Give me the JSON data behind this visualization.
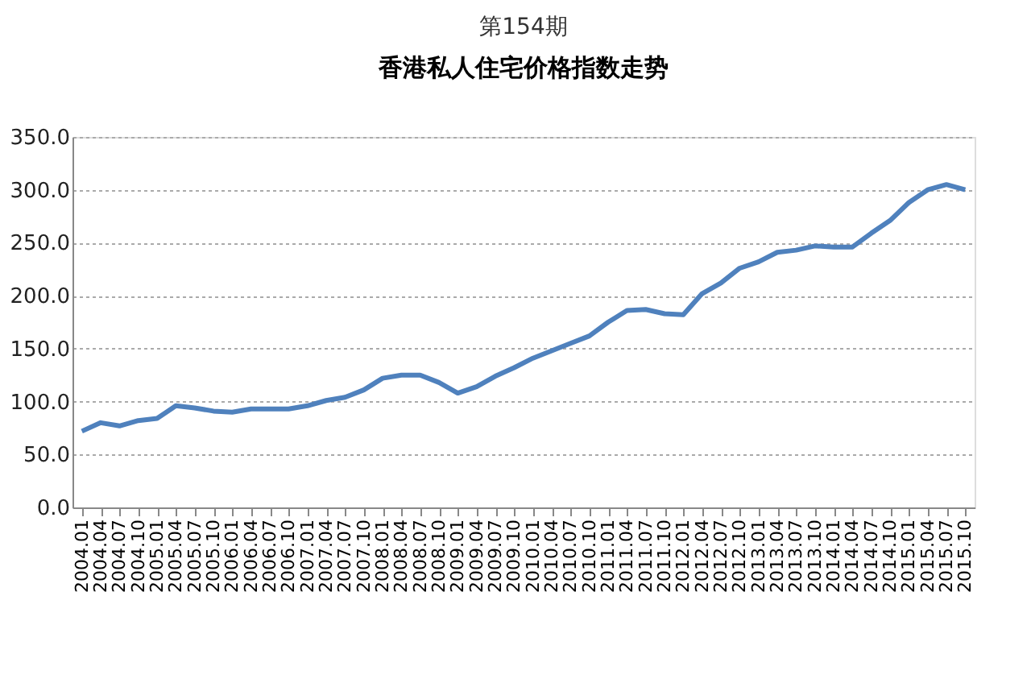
{
  "chart_data": {
    "type": "line",
    "title": "香港私人住宅价格指数走势",
    "annotations": [
      "第154期"
    ],
    "categories": [
      "2004.01",
      "2004.04",
      "2004.07",
      "2004.10",
      "2005.01",
      "2005.04",
      "2005.07",
      "2005.10",
      "2006.01",
      "2006.04",
      "2006.07",
      "2006.10",
      "2007.01",
      "2007.04",
      "2007.07",
      "2007.10",
      "2008.01",
      "2008.04",
      "2008.07",
      "2008.10",
      "2009.01",
      "2009.04",
      "2009.07",
      "2009.10",
      "2010.01",
      "2010.04",
      "2010.07",
      "2010.10",
      "2011.01",
      "2011.04",
      "2011.07",
      "2011.10",
      "2012.01",
      "2012.04",
      "2012.07",
      "2012.10",
      "2013.01",
      "2013.04",
      "2013.07",
      "2013.10",
      "2014.01",
      "2014.04",
      "2014.07",
      "2014.10",
      "2015.01",
      "2015.04",
      "2015.07",
      "2015.10"
    ],
    "series": [
      {
        "color": "#4f81bd",
        "values": [
          72,
          80,
          77,
          82,
          84,
          96,
          94,
          91,
          90,
          93,
          93,
          93,
          96,
          101,
          104,
          111,
          122,
          125,
          125,
          118,
          108,
          114,
          124,
          132,
          141,
          148,
          155,
          162,
          175,
          186,
          187,
          183,
          182,
          202,
          212,
          226,
          232,
          241,
          243,
          247,
          246,
          246,
          259,
          271,
          288,
          300,
          305,
          300
        ]
      }
    ],
    "ylim": [
      0,
      350
    ],
    "yticks": [
      {
        "value": 0,
        "label": "0.0"
      },
      {
        "value": 50,
        "label": "50.0"
      },
      {
        "value": 100,
        "label": "100.0"
      },
      {
        "value": 150,
        "label": "150.0"
      },
      {
        "value": 200,
        "label": "200.0"
      },
      {
        "value": 250,
        "label": "250.0"
      },
      {
        "value": 300,
        "label": "300.0"
      },
      {
        "value": 350,
        "label": "350.0"
      }
    ],
    "grid": "y",
    "marker": "none",
    "line_style": "solid"
  }
}
